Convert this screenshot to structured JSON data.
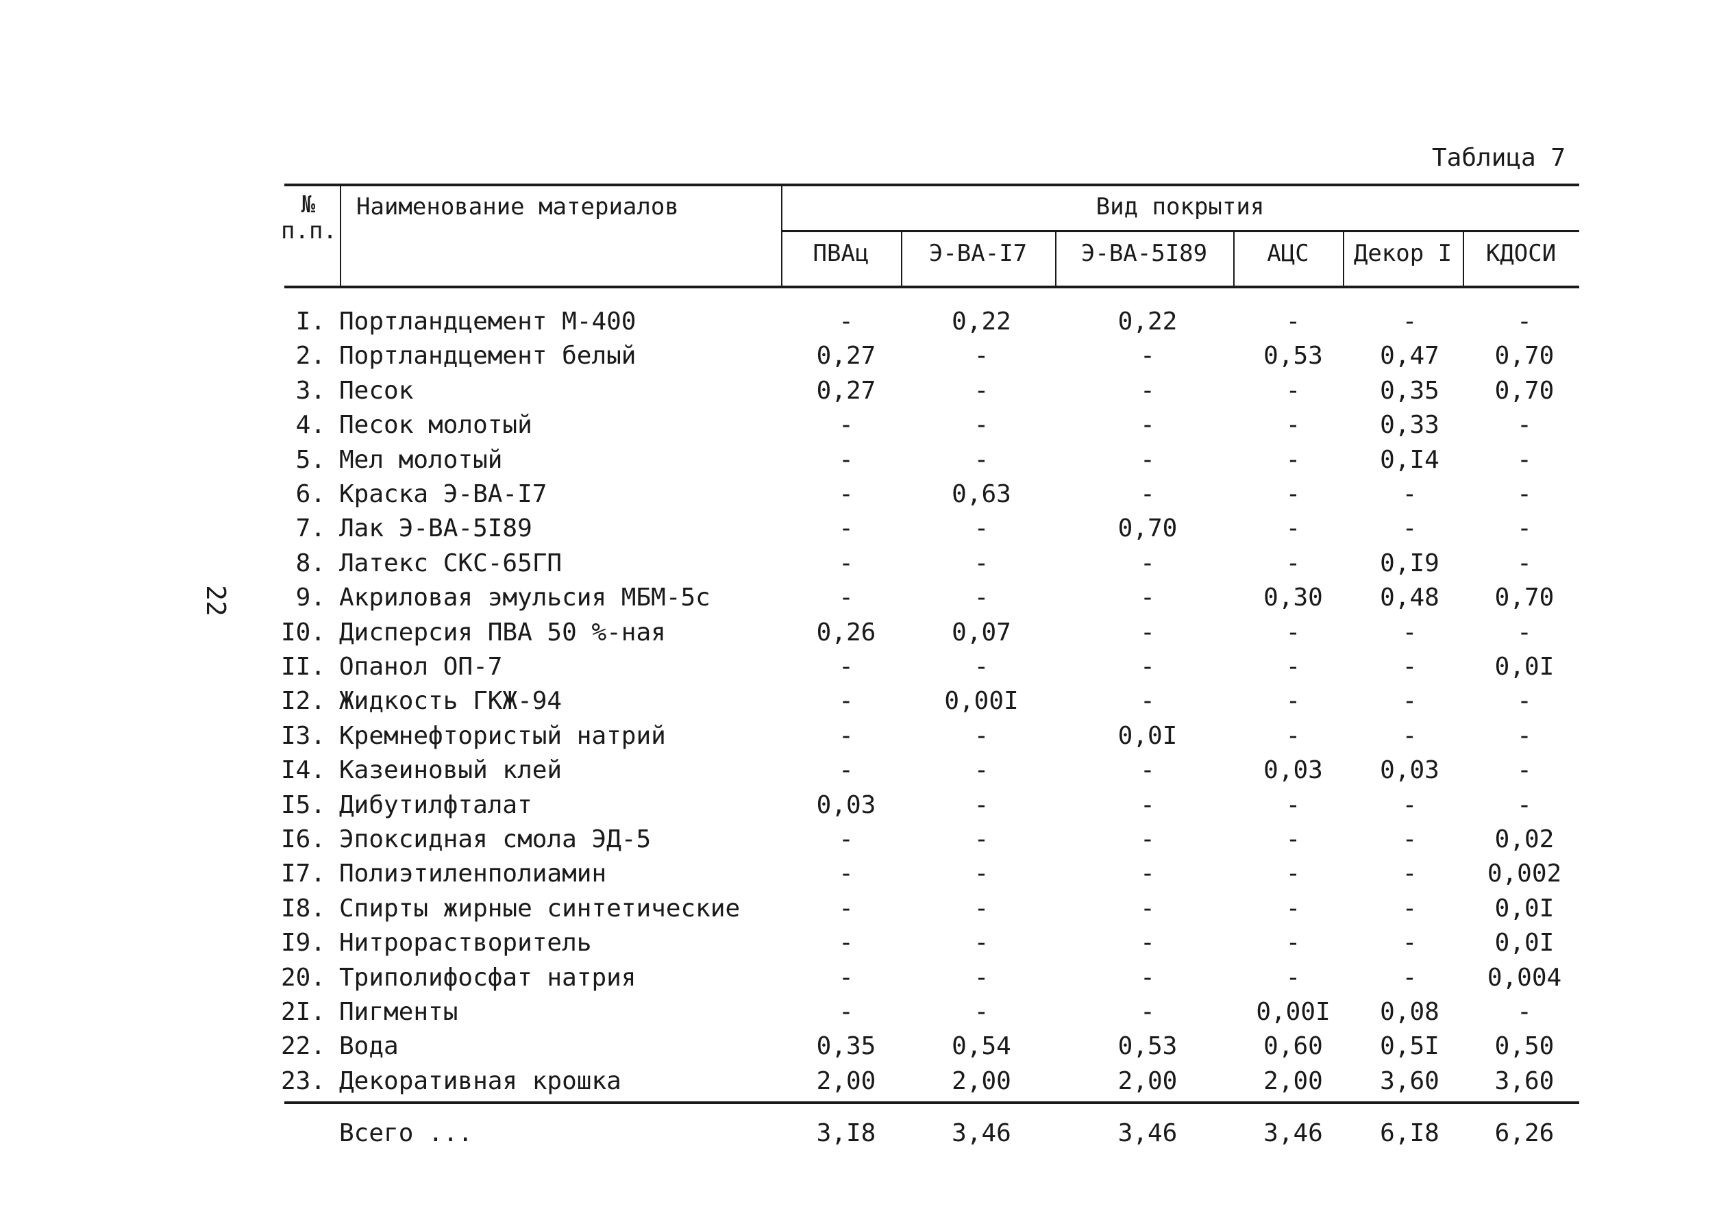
{
  "page_number": "22",
  "caption": "Таблица 7",
  "header": {
    "number": "№\nп.п.",
    "name": "Наименование материалов",
    "group": "Вид покрытия",
    "columns": [
      "ПВАц",
      "Э-ВА-І7",
      "Э-ВА-5І89",
      "АЦС",
      "Декор І",
      "КДОСИ"
    ]
  },
  "rows": [
    {
      "n": "І.",
      "name": "Портландцемент М-400",
      "values": [
        "-",
        "0,22",
        "0,22",
        "-",
        "-",
        "-"
      ]
    },
    {
      "n": "2.",
      "name": "Портландцемент белый",
      "values": [
        "0,27",
        "-",
        "-",
        "0,53",
        "0,47",
        "0,70"
      ]
    },
    {
      "n": "3.",
      "name": "Песок",
      "values": [
        "0,27",
        "-",
        "-",
        "-",
        "0,35",
        "0,70"
      ]
    },
    {
      "n": "4.",
      "name": "Песок молотый",
      "values": [
        "-",
        "-",
        "-",
        "-",
        "0,33",
        "-"
      ]
    },
    {
      "n": "5.",
      "name": "Мел молотый",
      "values": [
        "-",
        "-",
        "-",
        "-",
        "0,І4",
        "-"
      ]
    },
    {
      "n": "6.",
      "name": "Краска Э-ВА-І7",
      "values": [
        "-",
        "0,63",
        "-",
        "-",
        "-",
        "-"
      ]
    },
    {
      "n": "7.",
      "name": "Лак Э-ВА-5І89",
      "values": [
        "-",
        "-",
        "0,70",
        "-",
        "-",
        "-"
      ]
    },
    {
      "n": "8.",
      "name": "Латекс СКС-65ГП",
      "values": [
        "-",
        "-",
        "-",
        "-",
        "0,І9",
        "-"
      ]
    },
    {
      "n": "9.",
      "name": "Акриловая эмульсия МБМ-5с",
      "values": [
        "-",
        "-",
        "-",
        "0,30",
        "0,48",
        "0,70"
      ]
    },
    {
      "n": "І0.",
      "name": "Дисперсия ПВА 50 %-ная",
      "values": [
        "0,26",
        "0,07",
        "-",
        "-",
        "-",
        "-"
      ]
    },
    {
      "n": "ІІ.",
      "name": "Опанол ОП-7",
      "values": [
        "-",
        "-",
        "-",
        "-",
        "-",
        "0,0І"
      ]
    },
    {
      "n": "І2.",
      "name": "Жидкость ГКЖ-94",
      "values": [
        "-",
        "0,00І",
        "-",
        "-",
        "-",
        "-"
      ]
    },
    {
      "n": "І3.",
      "name": "Кремнефтористый натрий",
      "values": [
        "-",
        "-",
        "0,0І",
        "-",
        "-",
        "-"
      ]
    },
    {
      "n": "І4.",
      "name": "Казеиновый клей",
      "values": [
        "-",
        "-",
        "-",
        "0,03",
        "0,03",
        "-"
      ]
    },
    {
      "n": "І5.",
      "name": "Дибутилфталат",
      "values": [
        "0,03",
        "-",
        "-",
        "-",
        "-",
        "-"
      ]
    },
    {
      "n": "І6.",
      "name": "Эпоксидная смола ЭД-5",
      "values": [
        "-",
        "-",
        "-",
        "-",
        "-",
        "0,02"
      ]
    },
    {
      "n": "І7.",
      "name": "Полиэтиленполиамин",
      "values": [
        "-",
        "-",
        "-",
        "-",
        "-",
        "0,002"
      ]
    },
    {
      "n": "І8.",
      "name": "Спирты жирные синтетические",
      "values": [
        "-",
        "-",
        "-",
        "-",
        "-",
        "0,0І"
      ]
    },
    {
      "n": "І9.",
      "name": "Нитрорастворитель",
      "values": [
        "-",
        "-",
        "-",
        "-",
        "-",
        "0,0І"
      ]
    },
    {
      "n": "20.",
      "name": "Триполифосфат натрия",
      "values": [
        "-",
        "-",
        "-",
        "-",
        "-",
        "0,004"
      ]
    },
    {
      "n": "2І.",
      "name": "Пигменты",
      "values": [
        "-",
        "-",
        "-",
        "0,00І",
        "0,08",
        "-"
      ]
    },
    {
      "n": "22.",
      "name": "Вода",
      "values": [
        "0,35",
        "0,54",
        "0,53",
        "0,60",
        "0,5І",
        "0,50"
      ]
    },
    {
      "n": "23.",
      "name": "Декоративная крошка",
      "values": [
        "2,00",
        "2,00",
        "2,00",
        "2,00",
        "3,60",
        "3,60"
      ]
    }
  ],
  "total": {
    "label": "Всего ...",
    "values": [
      "3,І8",
      "3,46",
      "3,46",
      "3,46",
      "6,І8",
      "6,26"
    ]
  }
}
